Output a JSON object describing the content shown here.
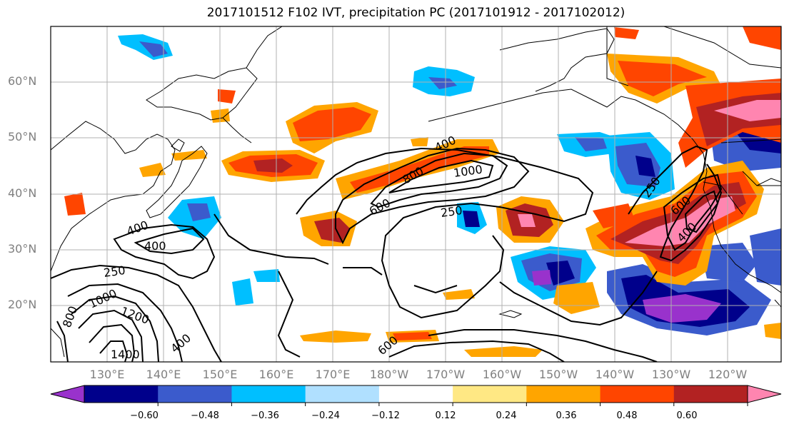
{
  "title": "2017101512 F102 IVT, precipitation PC (2017101912 - 2017102012)",
  "lat_labels": [
    "60°N",
    "50°N",
    "40°N",
    "30°N",
    "20°N"
  ],
  "lon_labels": [
    "130°E",
    "140°E",
    "150°E",
    "160°E",
    "170°E",
    "180°W",
    "170°W",
    "160°W",
    "150°W",
    "140°W",
    "130°W",
    "120°W"
  ],
  "contour_labels": [
    "400",
    "800",
    "1000",
    "600",
    "250",
    "250",
    "400",
    "400",
    "400",
    "250",
    "800",
    "1000",
    "1200",
    "1400",
    "400",
    "600",
    "600"
  ],
  "colorbar": {
    "colors": [
      "#9932cc",
      "#00008b",
      "#3b5bcc",
      "#00bfff",
      "#b0e0ff",
      "#ffffff",
      "#ffe884",
      "#ffa500",
      "#ff4500",
      "#b22222",
      "#ff85b0"
    ],
    "tick_labels": [
      "−0.60",
      "−0.48",
      "−0.36",
      "−0.24",
      "−0.12",
      "0.12",
      "0.24",
      "0.36",
      "0.48",
      "0.60"
    ]
  }
}
